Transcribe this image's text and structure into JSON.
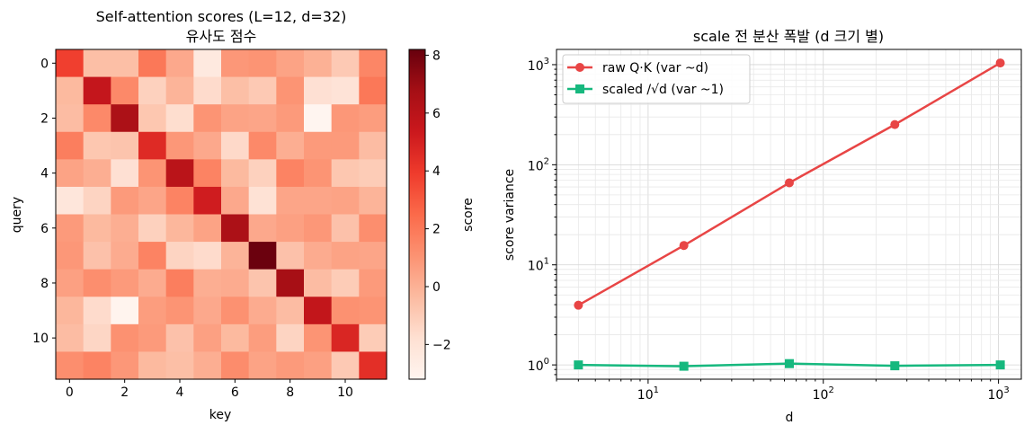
{
  "chart_data": [
    {
      "type": "heatmap",
      "title_line1": "Self-attention scores (L=12, d=32)",
      "title_line2": "유사도 점수",
      "xlabel": "key",
      "ylabel": "query",
      "x_ticks": [
        0,
        2,
        4,
        6,
        8,
        10
      ],
      "y_ticks": [
        0,
        2,
        4,
        6,
        8,
        10
      ],
      "colormap": "Reds",
      "colorbar_label": "score",
      "colorbar_ticks": [
        -2,
        0,
        2,
        4,
        6,
        8
      ],
      "colorbar_tick_labels": [
        "−2",
        "0",
        "2",
        "4",
        "6",
        "8"
      ],
      "vmin": -3.2,
      "vmax": 8.2,
      "values": [
        [
          3.8,
          -0.5,
          -0.5,
          2.0,
          0.3,
          -2.4,
          0.9,
          1.0,
          0.5,
          0.0,
          -0.9,
          1.5
        ],
        [
          -0.3,
          5.6,
          1.4,
          -1.2,
          -0.1,
          -1.6,
          -0.5,
          -0.9,
          1.0,
          -1.8,
          -2.0,
          2.0
        ],
        [
          -0.4,
          1.4,
          6.5,
          -0.8,
          -1.7,
          1.0,
          0.5,
          0.4,
          0.8,
          -3.2,
          0.9,
          0.7
        ],
        [
          1.8,
          -0.8,
          -0.7,
          4.6,
          0.9,
          0.3,
          -1.5,
          1.4,
          0.1,
          0.8,
          0.8,
          -0.4
        ],
        [
          0.5,
          0.1,
          -1.8,
          1.0,
          6.0,
          1.6,
          -0.3,
          -1.2,
          1.6,
          1.0,
          -0.8,
          -1.0
        ],
        [
          -2.2,
          -1.3,
          0.8,
          0.4,
          1.6,
          5.2,
          0.3,
          -1.9,
          0.4,
          0.4,
          0.5,
          -0.1
        ],
        [
          0.8,
          -0.3,
          0.1,
          -1.2,
          -0.2,
          0.5,
          6.5,
          0.3,
          0.6,
          0.9,
          -0.6,
          1.2
        ],
        [
          0.9,
          -0.6,
          0.2,
          1.6,
          -1.3,
          -1.6,
          -0.1,
          8.1,
          -0.6,
          0.2,
          0.5,
          0.4
        ],
        [
          0.6,
          1.2,
          0.8,
          0.2,
          1.8,
          0.1,
          0.2,
          -0.7,
          6.7,
          -0.4,
          -1.0,
          0.8
        ],
        [
          -0.2,
          -1.6,
          -3.1,
          0.7,
          1.0,
          0.3,
          1.1,
          0.2,
          -0.4,
          5.7,
          1.1,
          1.0
        ],
        [
          -0.4,
          -1.4,
          1.1,
          0.8,
          -0.6,
          0.6,
          -0.3,
          0.7,
          -1.3,
          1.0,
          4.8,
          -1.0
        ],
        [
          1.2,
          1.6,
          0.9,
          -0.3,
          -0.5,
          0.1,
          1.3,
          0.5,
          0.8,
          0.6,
          -0.9,
          4.4
        ]
      ]
    },
    {
      "type": "line",
      "title": "scale 전 분산 폭발 (d 크기 별)",
      "xlabel": "d",
      "ylabel": "score variance",
      "xscale": "log",
      "yscale": "log",
      "xlim": [
        3.0,
        1350
      ],
      "ylim": [
        0.72,
        1420
      ],
      "x_ticks": [
        10,
        100,
        1000
      ],
      "y_ticks": [
        1,
        10,
        100,
        1000
      ],
      "grid": true,
      "legend_position": "top-left",
      "x": [
        4,
        16,
        64,
        256,
        1024
      ],
      "series": [
        {
          "name": "raw Q·K (var ~d)",
          "values": [
            3.95,
            15.6,
            66,
            252,
            1040
          ],
          "color": "#e84545",
          "marker": "circle"
        },
        {
          "name": "scaled /√d (var ~1)",
          "values": [
            1.0,
            0.97,
            1.03,
            0.98,
            1.0
          ],
          "color": "#16b87e",
          "marker": "square"
        }
      ]
    }
  ]
}
